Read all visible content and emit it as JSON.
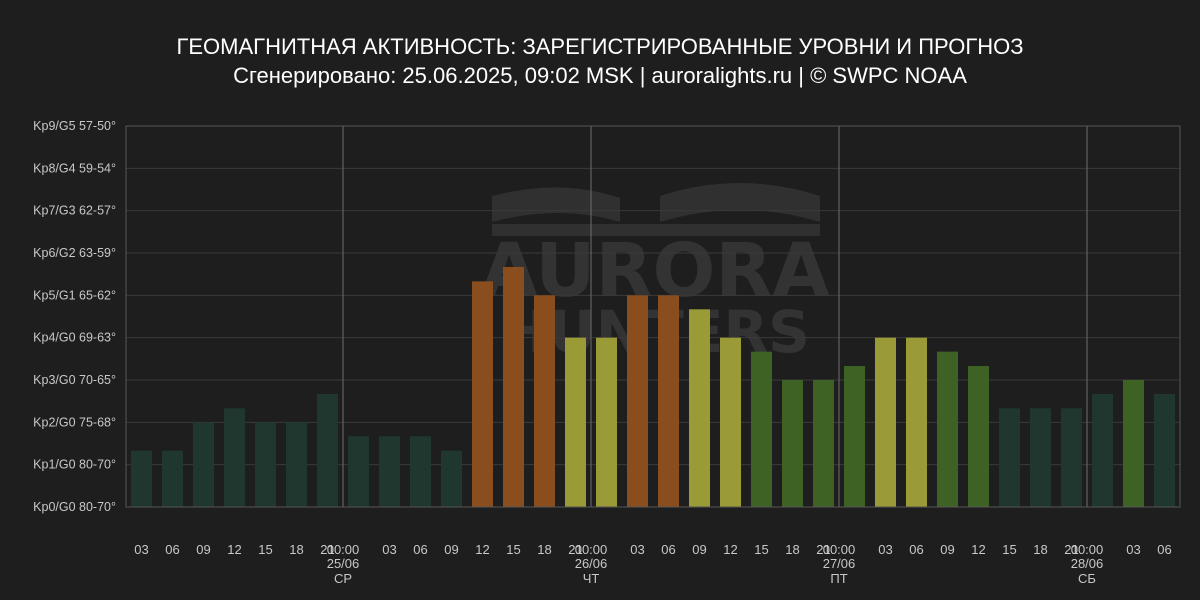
{
  "title": "ГЕОМАГНИТНАЯ АКТИВНОСТЬ: ЗАРЕГИСТРИРОВАННЫЕ УРОВНИ И ПРОГНОЗ",
  "subtitle": "Сгенерировано: 25.06.2025, 09:02 MSK | auroralights.ru | © SWPC NOAA",
  "watermark": {
    "line1": "AURORA",
    "line2": "HUNTERS"
  },
  "colors": {
    "background": "#1e1e1e",
    "grid": "#3a3a3a",
    "axis": "#666666",
    "day_separator": "#6e6e6e",
    "quiet": "#20372f",
    "unsettled": "#3e6224",
    "active": "#9a9a36",
    "storm": "#8a4d1e"
  },
  "chart_data": {
    "type": "bar",
    "title": "ГЕОМАГНИТНАЯ АКТИВНОСТЬ: ЗАРЕГИСТРИРОВАННЫЕ УРОВНИ И ПРОГНОЗ",
    "ylim": [
      0,
      9
    ],
    "y_ticks": [
      "Kp0/G0 80-70°",
      "Kp1/G0 80-70°",
      "Kp2/G0 75-68°",
      "Kp3/G0 70-65°",
      "Kp4/G0 69-63°",
      "Kp5/G1 65-62°",
      "Kp6/G2 63-59°",
      "Kp7/G3 62-57°",
      "Kp8/G4 59-54°",
      "Kp9/G5 57-50°"
    ],
    "grid": true,
    "categories": [
      "03",
      "06",
      "09",
      "12",
      "15",
      "18",
      "21",
      "00:00",
      "03",
      "06",
      "09",
      "12",
      "15",
      "18",
      "21",
      "00:00",
      "03",
      "06",
      "09",
      "12",
      "15",
      "18",
      "21",
      "00:00",
      "03",
      "06",
      "09",
      "12",
      "15",
      "18",
      "21",
      "00:00",
      "03",
      "06"
    ],
    "x_tick_sublabels": [
      {
        "index": 7,
        "date": "25/06",
        "day": "СР"
      },
      {
        "index": 15,
        "date": "26/06",
        "day": "ЧТ"
      },
      {
        "index": 23,
        "date": "27/06",
        "day": "ПТ"
      },
      {
        "index": 31,
        "date": "28/06",
        "day": "СБ"
      }
    ],
    "day_separators": [
      7,
      15,
      23,
      31
    ],
    "values": [
      1.33,
      1.33,
      2.0,
      2.33,
      2.0,
      2.0,
      2.67,
      1.67,
      1.67,
      1.67,
      1.33,
      5.33,
      5.67,
      5.0,
      4.0,
      4.0,
      5.0,
      5.0,
      4.67,
      4.0,
      3.67,
      3.0,
      3.0,
      3.33,
      4.0,
      4.0,
      3.67,
      3.33,
      2.33,
      2.33,
      2.33,
      2.67,
      3.0,
      2.67
    ],
    "bar_colors": [
      "quiet",
      "quiet",
      "quiet",
      "quiet",
      "quiet",
      "quiet",
      "quiet",
      "quiet",
      "quiet",
      "quiet",
      "quiet",
      "storm",
      "storm",
      "storm",
      "active",
      "active",
      "storm",
      "storm",
      "active",
      "active",
      "unsettled",
      "unsettled",
      "unsettled",
      "unsettled",
      "active",
      "active",
      "unsettled",
      "unsettled",
      "quiet",
      "quiet",
      "quiet",
      "quiet",
      "unsettled",
      "quiet"
    ]
  }
}
